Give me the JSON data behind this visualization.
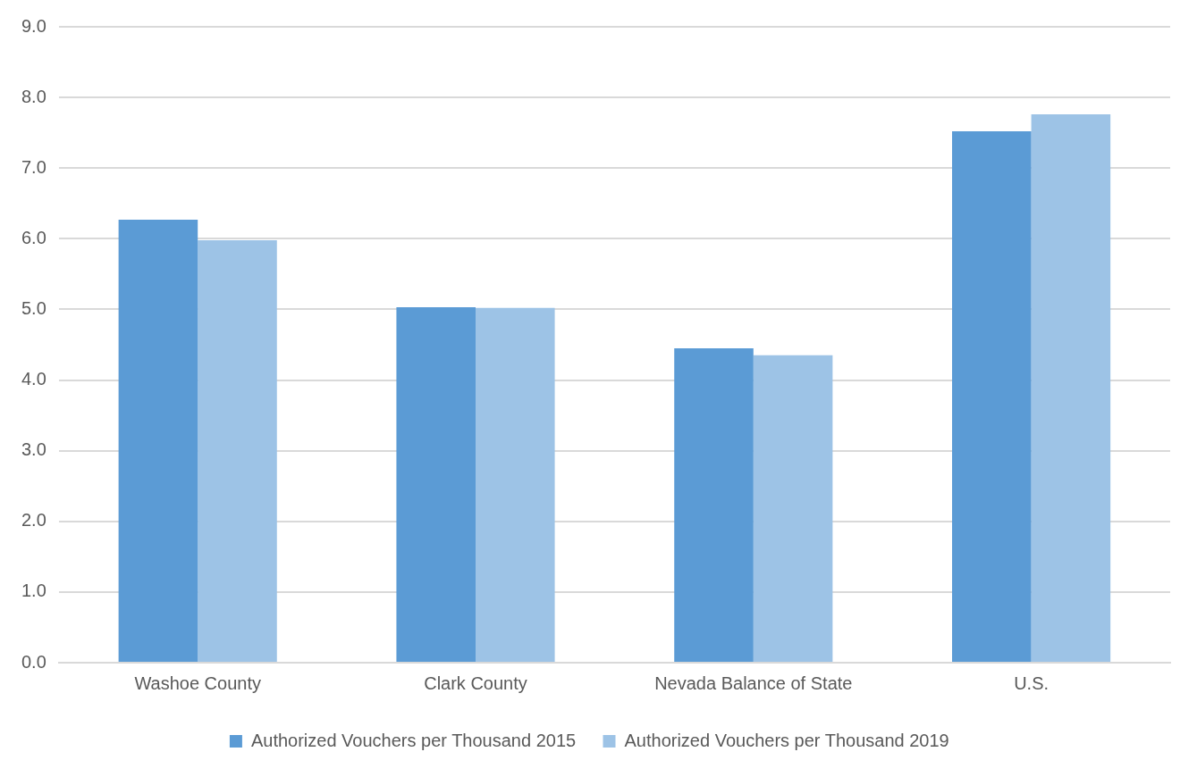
{
  "chart_data": {
    "type": "bar",
    "categories": [
      "Washoe County",
      "Clark County",
      "Nevada Balance of State",
      "U.S."
    ],
    "series": [
      {
        "name": "Authorized Vouchers per Thousand 2015",
        "color": "#5b9bd5",
        "values": [
          6.27,
          5.03,
          4.45,
          7.52
        ]
      },
      {
        "name": "Authorized Vouchers per Thousand 2019",
        "color": "#9dc3e6",
        "values": [
          5.98,
          5.02,
          4.35,
          7.76
        ]
      }
    ],
    "ylim": [
      0,
      9
    ],
    "yticks": [
      {
        "value": 0,
        "label": "0.0"
      },
      {
        "value": 1,
        "label": "1.0"
      },
      {
        "value": 2,
        "label": "2.0"
      },
      {
        "value": 3,
        "label": "3.0"
      },
      {
        "value": 4,
        "label": "4.0"
      },
      {
        "value": 5,
        "label": "5.0"
      },
      {
        "value": 6,
        "label": "6.0"
      },
      {
        "value": 7,
        "label": "7.0"
      },
      {
        "value": 8,
        "label": "8.0"
      },
      {
        "value": 9,
        "label": "9.0"
      }
    ],
    "grid": "y",
    "legend": "bottom"
  }
}
